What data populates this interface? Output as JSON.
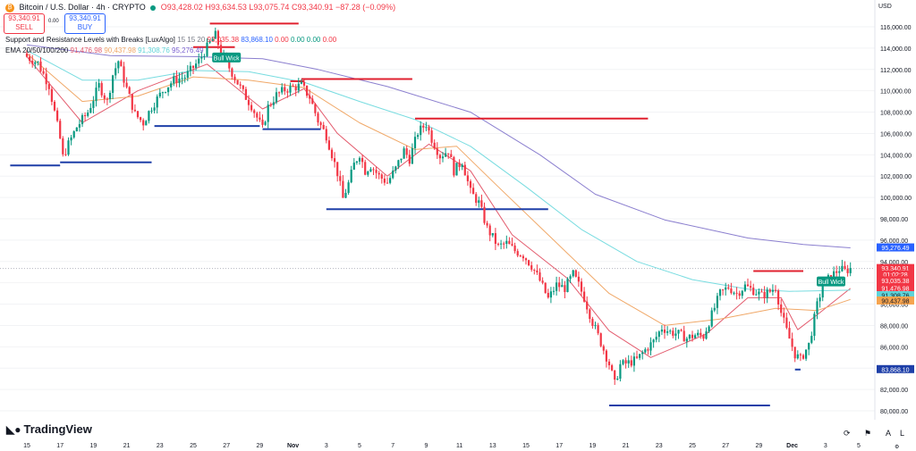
{
  "header": {
    "symbol_icon": "bitcoin-icon",
    "symbol": "Bitcoin / U.S. Dollar · 4h · CRYPTO",
    "open": "O93,428.02",
    "high": "H93,634.53",
    "low": "L93,075.74",
    "close": "C93,340.91",
    "change": "−87.28 (−0.09%)"
  },
  "trade": {
    "sell_price": "93,340.91",
    "sell_label": "SELL",
    "spread": "0.00",
    "buy_price": "93,340.91",
    "buy_label": "BUY"
  },
  "indicators": {
    "sr": {
      "name": "Support and Resistance Levels with Breaks [LuxAlgo]",
      "params": "15 15 20",
      "v1": "93,035.38",
      "v2": "83,868.10",
      "v3": "0.00",
      "v4": "0.00",
      "v5": "0.00",
      "v6": "0.00"
    },
    "ema": {
      "name": "EMA 20/50/100/200",
      "v20": "91,476.98",
      "v50": "90,437.98",
      "v100": "91,308.76",
      "v200": "95,276.49"
    }
  },
  "currency": "USD",
  "brand": "TradingView",
  "bottom_controls": {
    "log_label": "L",
    "auto_label": "A"
  },
  "colors": {
    "up": "#089981",
    "down": "#f23645",
    "support": "#1e3fa8",
    "resistance": "#e0202f",
    "ema20": "#e35c6e",
    "ema50": "#f0a868",
    "ema100": "#78dce0",
    "ema200": "#8b7fcf"
  },
  "chart_data": {
    "type": "candlestick",
    "timeframe": "4h",
    "ylim": [
      79000,
      117500
    ],
    "y_ticks": [
      80000,
      82000,
      84000,
      86000,
      88000,
      90000,
      92000,
      94000,
      96000,
      98000,
      100000,
      102000,
      104000,
      106000,
      108000,
      110000,
      112000,
      114000,
      116000
    ],
    "y_tick_labels": [
      "80,000.00",
      "82,000.00",
      "84,000.00",
      "86,000.00",
      "88,000.00",
      "90,000.00",
      "92,000.00",
      "94,000.00",
      "96,000.00",
      "98,000.00",
      "100,000.00",
      "102,000.00",
      "104,000.00",
      "106,000.00",
      "108,000.00",
      "110,000.00",
      "112,000.00",
      "114,000.00",
      "116,000.00"
    ],
    "x_ticks": [
      {
        "label": "15",
        "t": 0
      },
      {
        "label": "17",
        "t": 12
      },
      {
        "label": "19",
        "t": 24
      },
      {
        "label": "21",
        "t": 36
      },
      {
        "label": "23",
        "t": 48
      },
      {
        "label": "25",
        "t": 60
      },
      {
        "label": "27",
        "t": 72
      },
      {
        "label": "29",
        "t": 84
      },
      {
        "label": "Nov",
        "t": 96
      },
      {
        "label": "3",
        "t": 108
      },
      {
        "label": "5",
        "t": 120
      },
      {
        "label": "7",
        "t": 132
      },
      {
        "label": "9",
        "t": 144
      },
      {
        "label": "11",
        "t": 156
      },
      {
        "label": "13",
        "t": 168
      },
      {
        "label": "15",
        "t": 180
      },
      {
        "label": "17",
        "t": 192
      },
      {
        "label": "19",
        "t": 204
      },
      {
        "label": "21",
        "t": 216
      },
      {
        "label": "23",
        "t": 228
      },
      {
        "label": "25",
        "t": 240
      },
      {
        "label": "27",
        "t": 252
      },
      {
        "label": "29",
        "t": 264
      },
      {
        "label": "Dec",
        "t": 276
      },
      {
        "label": "3",
        "t": 288
      },
      {
        "label": "5",
        "t": 300
      }
    ],
    "close_anchors": [
      [
        0,
        113200
      ],
      [
        4,
        112600
      ],
      [
        8,
        110500
      ],
      [
        12,
        105500
      ],
      [
        13,
        103800
      ],
      [
        15,
        105000
      ],
      [
        18,
        106600
      ],
      [
        22,
        108000
      ],
      [
        26,
        110500
      ],
      [
        29,
        109000
      ],
      [
        31,
        111500
      ],
      [
        33,
        112800
      ],
      [
        36,
        110200
      ],
      [
        39,
        107800
      ],
      [
        42,
        107000
      ],
      [
        45,
        108500
      ],
      [
        49,
        110000
      ],
      [
        53,
        111000
      ],
      [
        57,
        111300
      ],
      [
        62,
        112800
      ],
      [
        66,
        114500
      ],
      [
        68,
        115200
      ],
      [
        70,
        113600
      ],
      [
        74,
        111700
      ],
      [
        78,
        109800
      ],
      [
        81,
        108600
      ],
      [
        85,
        106400
      ],
      [
        87,
        108500
      ],
      [
        90,
        109600
      ],
      [
        93,
        110100
      ],
      [
        96,
        110300
      ],
      [
        99,
        110500
      ],
      [
        102,
        109400
      ],
      [
        105,
        107200
      ],
      [
        108,
        105800
      ],
      [
        112,
        102300
      ],
      [
        114,
        99900
      ],
      [
        116,
        101300
      ],
      [
        118,
        103100
      ],
      [
        120,
        104100
      ],
      [
        122,
        102500
      ],
      [
        124,
        103000
      ],
      [
        127,
        102000
      ],
      [
        130,
        101400
      ],
      [
        133,
        102700
      ],
      [
        136,
        104400
      ],
      [
        138,
        103600
      ],
      [
        141,
        106100
      ],
      [
        144,
        106900
      ],
      [
        146,
        105500
      ],
      [
        149,
        103900
      ],
      [
        152,
        104400
      ],
      [
        154,
        102500
      ],
      [
        157,
        103400
      ],
      [
        160,
        100500
      ],
      [
        163,
        99500
      ],
      [
        166,
        97100
      ],
      [
        170,
        95400
      ],
      [
        173,
        95700
      ],
      [
        176,
        95000
      ],
      [
        179,
        94600
      ],
      [
        182,
        93600
      ],
      [
        185,
        92200
      ],
      [
        188,
        90500
      ],
      [
        191,
        91800
      ],
      [
        194,
        91500
      ],
      [
        197,
        92800
      ],
      [
        199,
        91800
      ],
      [
        201,
        90600
      ],
      [
        204,
        88300
      ],
      [
        207,
        86400
      ],
      [
        210,
        84400
      ],
      [
        212,
        82500
      ],
      [
        214,
        84300
      ],
      [
        217,
        84500
      ],
      [
        220,
        84800
      ],
      [
        223,
        85700
      ],
      [
        226,
        86500
      ],
      [
        229,
        87800
      ],
      [
        232,
        87400
      ],
      [
        235,
        87200
      ],
      [
        238,
        86800
      ],
      [
        241,
        87100
      ],
      [
        244,
        87000
      ],
      [
        247,
        89000
      ],
      [
        250,
        91000
      ],
      [
        253,
        91600
      ],
      [
        256,
        91000
      ],
      [
        259,
        91700
      ],
      [
        262,
        91300
      ],
      [
        265,
        90800
      ],
      [
        268,
        91200
      ],
      [
        270,
        91600
      ],
      [
        272,
        89200
      ],
      [
        274,
        87500
      ],
      [
        277,
        85300
      ],
      [
        279,
        84800
      ],
      [
        282,
        86200
      ],
      [
        285,
        89900
      ],
      [
        287,
        91800
      ],
      [
        290,
        92600
      ],
      [
        293,
        93300
      ],
      [
        295,
        93100
      ],
      [
        297,
        93341
      ]
    ],
    "series": [
      {
        "name": "EMA 20",
        "key": "ema20",
        "values": [
          [
            0,
            113200
          ],
          [
            20,
            107000
          ],
          [
            40,
            110000
          ],
          [
            65,
            112500
          ],
          [
            85,
            108300
          ],
          [
            100,
            110200
          ],
          [
            112,
            106000
          ],
          [
            130,
            102000
          ],
          [
            145,
            105000
          ],
          [
            160,
            102500
          ],
          [
            175,
            96500
          ],
          [
            195,
            92400
          ],
          [
            210,
            87500
          ],
          [
            225,
            85000
          ],
          [
            245,
            87200
          ],
          [
            260,
            90600
          ],
          [
            272,
            90600
          ],
          [
            278,
            87600
          ],
          [
            285,
            89000
          ],
          [
            297,
            91477
          ]
        ]
      },
      {
        "name": "EMA 50",
        "key": "ema50",
        "values": [
          [
            0,
            113500
          ],
          [
            20,
            109000
          ],
          [
            40,
            109500
          ],
          [
            60,
            111300
          ],
          [
            80,
            111000
          ],
          [
            100,
            110300
          ],
          [
            120,
            107000
          ],
          [
            140,
            104500
          ],
          [
            155,
            104800
          ],
          [
            170,
            101000
          ],
          [
            190,
            96000
          ],
          [
            210,
            91000
          ],
          [
            230,
            88000
          ],
          [
            250,
            88600
          ],
          [
            270,
            89600
          ],
          [
            285,
            89400
          ],
          [
            297,
            90438
          ]
        ]
      },
      {
        "name": "EMA 100",
        "key": "ema100",
        "values": [
          [
            0,
            113800
          ],
          [
            20,
            111000
          ],
          [
            40,
            111000
          ],
          [
            60,
            111900
          ],
          [
            80,
            111800
          ],
          [
            100,
            110800
          ],
          [
            120,
            109000
          ],
          [
            140,
            107300
          ],
          [
            160,
            104800
          ],
          [
            180,
            101000
          ],
          [
            200,
            97000
          ],
          [
            220,
            94000
          ],
          [
            240,
            92300
          ],
          [
            260,
            91400
          ],
          [
            275,
            91200
          ],
          [
            297,
            91309
          ]
        ]
      },
      {
        "name": "EMA 200",
        "key": "ema200",
        "values": [
          [
            0,
            114300
          ],
          [
            30,
            113300
          ],
          [
            60,
            113200
          ],
          [
            85,
            113000
          ],
          [
            105,
            112000
          ],
          [
            130,
            110400
          ],
          [
            160,
            108000
          ],
          [
            185,
            104000
          ],
          [
            205,
            100300
          ],
          [
            230,
            97900
          ],
          [
            260,
            96200
          ],
          [
            280,
            95600
          ],
          [
            297,
            95276
          ]
        ]
      }
    ],
    "support_levels": [
      {
        "y": 103000,
        "t0": -6,
        "t1": 12
      },
      {
        "y": 103300,
        "t0": 12,
        "t1": 45
      },
      {
        "y": 106700,
        "t0": 46,
        "t1": 84
      },
      {
        "y": 106400,
        "t0": 85,
        "t1": 106
      },
      {
        "y": 98900,
        "t0": 108,
        "t1": 188
      },
      {
        "y": 80500,
        "t0": 210,
        "t1": 268
      },
      {
        "y": 83868,
        "t0": 277,
        "t1": 279
      }
    ],
    "resistance_levels": [
      {
        "y": 116300,
        "t0": 66,
        "t1": 98
      },
      {
        "y": 114100,
        "t0": 60,
        "t1": 75
      },
      {
        "y": 111100,
        "t0": 99,
        "t1": 139
      },
      {
        "y": 107400,
        "t0": 140,
        "t1": 224
      },
      {
        "y": 93100,
        "t0": 262,
        "t1": 280
      },
      {
        "y": 110900,
        "t0": 95,
        "t1": 100
      }
    ],
    "labels": [
      {
        "text": "Bull Wick",
        "t": 72,
        "y": 113000
      },
      {
        "text": "Bull Wick",
        "t": 290,
        "y": 92000
      }
    ],
    "price_labels": [
      {
        "text": "95,276.49",
        "y": 95276,
        "bg": "#2962ff",
        "fg": "#ffffff"
      },
      {
        "text": "93,340.91",
        "y": 93341,
        "bg": "#f23645",
        "fg": "#ffffff"
      },
      {
        "text": "01:02:28",
        "y": 92750,
        "bg": "#f23645",
        "fg": "#ffffff"
      },
      {
        "text": "93,035.38",
        "y": 92200,
        "bg": "#f23645",
        "fg": "#ffffff"
      },
      {
        "text": "91,476.98",
        "y": 91477,
        "bg": "#f23645",
        "fg": "#ffffff"
      },
      {
        "text": "91,308.76",
        "y": 90800,
        "bg": "#5fd3d8",
        "fg": "#131722"
      },
      {
        "text": "90,437.98",
        "y": 90300,
        "bg": "#f6a44f",
        "fg": "#131722"
      },
      {
        "text": "83,868.10",
        "y": 83868,
        "bg": "#1e3fa8",
        "fg": "#ffffff"
      }
    ]
  }
}
